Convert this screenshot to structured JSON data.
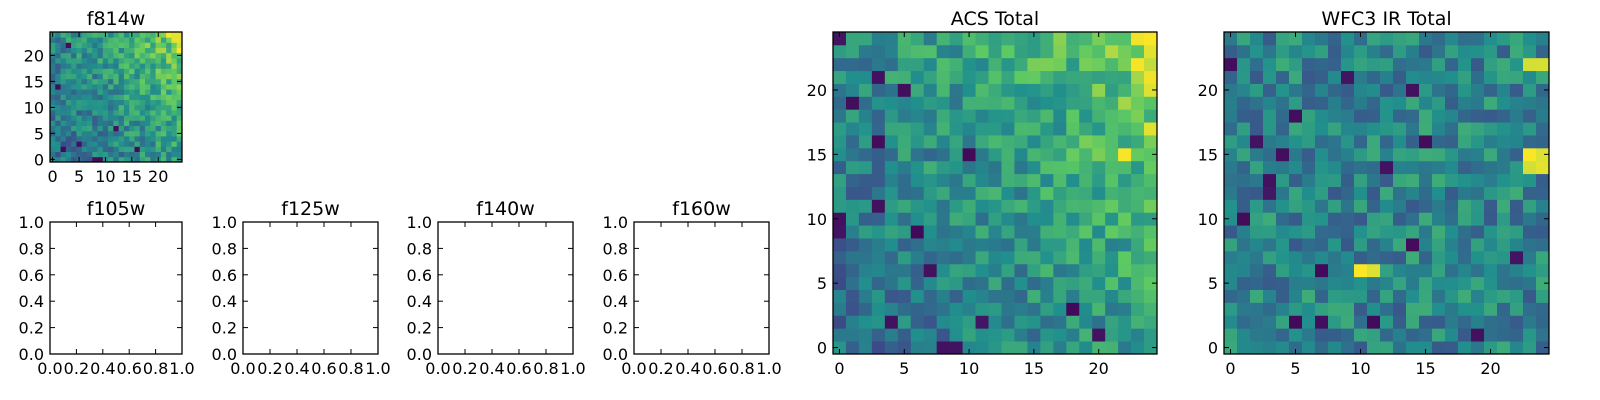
{
  "colormap": [
    "#440154",
    "#3b528b",
    "#21908d",
    "#5dc963",
    "#fde725"
  ],
  "chart_data": [
    {
      "type": "heatmap",
      "id": "f814w",
      "title": "f814w",
      "xticks": [
        "0",
        "5",
        "10",
        "15",
        "20"
      ],
      "yticks": [
        "0",
        "5",
        "10",
        "15",
        "20"
      ],
      "xlim": [
        -0.5,
        24.5
      ],
      "ylim": [
        -0.5,
        24.5
      ],
      "grid_size": [
        25,
        25
      ],
      "trend_note": "values rise toward upper-right; brightest at top-right corner",
      "bright_cells": [
        [
          24,
          24
        ],
        [
          23,
          24
        ],
        [
          24,
          23
        ],
        [
          24,
          22
        ],
        [
          23,
          23
        ],
        [
          22,
          24
        ],
        [
          24,
          21
        ]
      ],
      "dark_cells": [
        [
          8,
          0
        ],
        [
          9,
          0
        ],
        [
          2,
          2
        ],
        [
          5,
          3
        ],
        [
          1,
          14
        ],
        [
          3,
          22
        ],
        [
          16,
          2
        ],
        [
          12,
          6
        ]
      ]
    },
    {
      "type": "heatmap",
      "id": "f105w",
      "title": "f105w",
      "empty": true,
      "xticks": [
        "0.0",
        "0.2",
        "0.4",
        "0.6",
        "0.8",
        "1.0"
      ],
      "yticks": [
        "0.0",
        "0.2",
        "0.4",
        "0.6",
        "0.8",
        "1.0"
      ],
      "xlim": [
        0,
        1
      ],
      "ylim": [
        0,
        1
      ]
    },
    {
      "type": "heatmap",
      "id": "f125w",
      "title": "f125w",
      "empty": true,
      "xticks": [
        "0.0",
        "0.2",
        "0.4",
        "0.6",
        "0.8",
        "1.0"
      ],
      "yticks": [
        "0.0",
        "0.2",
        "0.4",
        "0.6",
        "0.8",
        "1.0"
      ],
      "xlim": [
        0,
        1
      ],
      "ylim": [
        0,
        1
      ]
    },
    {
      "type": "heatmap",
      "id": "f140w",
      "title": "f140w",
      "empty": true,
      "xticks": [
        "0.0",
        "0.2",
        "0.4",
        "0.6",
        "0.8",
        "1.0"
      ],
      "yticks": [
        "0.0",
        "0.2",
        "0.4",
        "0.6",
        "0.8",
        "1.0"
      ],
      "xlim": [
        0,
        1
      ],
      "ylim": [
        0,
        1
      ]
    },
    {
      "type": "heatmap",
      "id": "f160w",
      "title": "f160w",
      "empty": true,
      "xticks": [
        "0.0",
        "0.2",
        "0.4",
        "0.6",
        "0.8",
        "1.0"
      ],
      "yticks": [
        "0.0",
        "0.2",
        "0.4",
        "0.6",
        "0.8",
        "1.0"
      ],
      "xlim": [
        0,
        1
      ],
      "ylim": [
        0,
        1
      ]
    },
    {
      "type": "heatmap",
      "id": "acs-total",
      "title": "ACS Total",
      "xticks": [
        "0",
        "5",
        "10",
        "15",
        "20"
      ],
      "yticks": [
        "0",
        "5",
        "10",
        "15",
        "20"
      ],
      "xlim": [
        -0.5,
        24.5
      ],
      "ylim": [
        -0.5,
        24.5
      ],
      "grid_size": [
        25,
        25
      ],
      "trend_note": "values rise toward upper-right; yellow in columns 22-24 at rows 17-24",
      "bright_cells": [
        [
          24,
          24
        ],
        [
          23,
          24
        ],
        [
          24,
          23
        ],
        [
          23,
          22
        ],
        [
          24,
          21
        ],
        [
          24,
          20
        ],
        [
          22,
          15
        ],
        [
          24,
          17
        ]
      ],
      "dark_cells": [
        [
          0,
          10
        ],
        [
          0,
          9
        ],
        [
          3,
          16
        ],
        [
          1,
          19
        ],
        [
          3,
          21
        ],
        [
          5,
          20
        ],
        [
          8,
          0
        ],
        [
          9,
          0
        ],
        [
          11,
          2
        ],
        [
          4,
          2
        ],
        [
          3,
          11
        ],
        [
          6,
          9
        ],
        [
          10,
          15
        ],
        [
          7,
          6
        ],
        [
          0,
          24
        ],
        [
          18,
          3
        ],
        [
          20,
          1
        ]
      ]
    },
    {
      "type": "heatmap",
      "id": "wfc3-ir-total",
      "title": "WFC3 IR Total",
      "xticks": [
        "0",
        "5",
        "10",
        "15",
        "20"
      ],
      "yticks": [
        "0",
        "5",
        "10",
        "15",
        "20"
      ],
      "xlim": [
        -0.5,
        24.5
      ],
      "ylim": [
        -0.5,
        24.5
      ],
      "grid_size": [
        25,
        25
      ],
      "trend_note": "fairly uniform teal/green field with scattered dark pixels and a few yellow spots",
      "bright_cells": [
        [
          24,
          15
        ],
        [
          23,
          15
        ],
        [
          24,
          14
        ],
        [
          23,
          14
        ],
        [
          24,
          22
        ],
        [
          23,
          22
        ],
        [
          11,
          6
        ],
        [
          10,
          6
        ]
      ],
      "dark_cells": [
        [
          0,
          22
        ],
        [
          3,
          13
        ],
        [
          3,
          12
        ],
        [
          9,
          21
        ],
        [
          1,
          10
        ],
        [
          5,
          18
        ],
        [
          4,
          15
        ],
        [
          14,
          20
        ],
        [
          7,
          2
        ],
        [
          7,
          6
        ],
        [
          19,
          1
        ],
        [
          15,
          16
        ],
        [
          11,
          2
        ],
        [
          12,
          14
        ],
        [
          5,
          2
        ],
        [
          22,
          7
        ],
        [
          2,
          16
        ],
        [
          14,
          8
        ]
      ]
    }
  ]
}
